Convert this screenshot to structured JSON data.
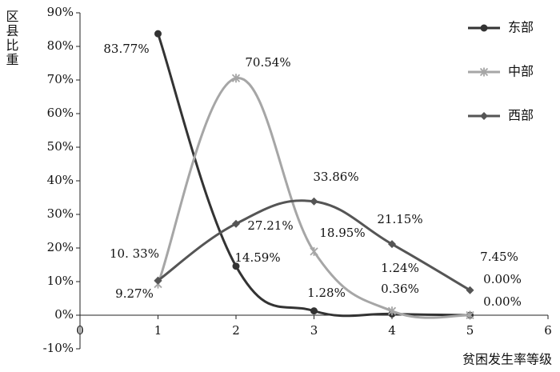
{
  "chart_data": {
    "type": "line",
    "y_label": "区县比重",
    "x_label": "贫困发生率等级",
    "x": [
      1,
      2,
      3,
      4,
      5
    ],
    "xlim": [
      0,
      6
    ],
    "xticks": [
      0,
      1,
      2,
      3,
      4,
      5,
      6
    ],
    "ylim": [
      -10,
      90
    ],
    "yticks": [
      {
        "value": -10,
        "label": "-10%"
      },
      {
        "value": 0,
        "label": "0%"
      },
      {
        "value": 10,
        "label": "10%"
      },
      {
        "value": 20,
        "label": "20%"
      },
      {
        "value": 30,
        "label": "30%"
      },
      {
        "value": 40,
        "label": "40%"
      },
      {
        "value": 50,
        "label": "50%"
      },
      {
        "value": 60,
        "label": "60%"
      },
      {
        "value": 70,
        "label": "70%"
      },
      {
        "value": 80,
        "label": "80%"
      },
      {
        "value": 90,
        "label": "90%"
      }
    ],
    "grid": false,
    "legend": "top-right",
    "series": [
      {
        "name": "东部",
        "color": "#333333",
        "marker": "circle",
        "values": [
          83.77,
          14.59,
          1.28,
          0.36,
          0.0
        ],
        "value_labels": [
          "83.77%",
          "14.59%",
          "1.28%",
          "0.36%",
          "0.00%"
        ]
      },
      {
        "name": "中部",
        "color": "#a6a6a6",
        "marker": "star",
        "values": [
          9.27,
          70.54,
          18.95,
          1.24,
          0.0
        ],
        "value_labels": [
          "9.27%",
          "70.54%",
          "18.95%",
          "1.24%",
          "0.00%"
        ]
      },
      {
        "name": "西部",
        "color": "#555555",
        "marker": "diamond",
        "values": [
          10.33,
          27.21,
          33.86,
          21.15,
          7.45
        ],
        "value_labels": [
          "10. 33%",
          "27.21%",
          "33.86%",
          "21.15%",
          "7.45%"
        ]
      }
    ]
  }
}
